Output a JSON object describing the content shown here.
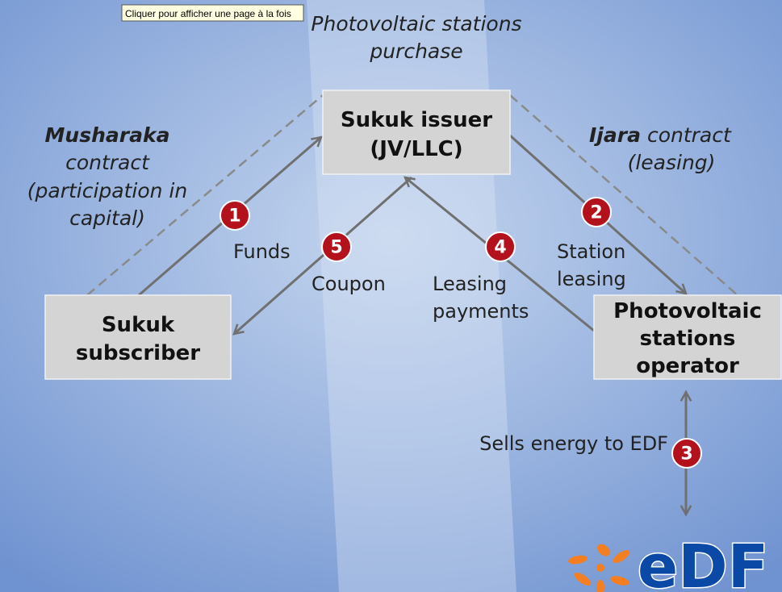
{
  "tooltip": "Cliquer pour afficher une page à la fois",
  "purchase_label": [
    "Photovoltaic stations",
    "purchase"
  ],
  "musharaka": {
    "term": "Musharaka",
    "lines": [
      "contract",
      "(participation in",
      "capital)"
    ]
  },
  "ijara": {
    "term": "Ijara",
    "rest": "contract",
    "lines": [
      "(leasing)"
    ]
  },
  "nodes": [
    {
      "label": [
        "Sukuk issuer",
        "(JV/LLC)"
      ]
    },
    {
      "label": [
        "Sukuk",
        "subscriber"
      ]
    },
    {
      "label": [
        "Photovoltaic",
        "stations",
        "operator"
      ]
    }
  ],
  "steps": [
    {
      "number": "1",
      "label": [
        "Funds"
      ]
    },
    {
      "number": "2",
      "label": [
        "Station",
        "leasing"
      ]
    },
    {
      "number": "3",
      "label": [
        "Sells energy to EDF"
      ]
    },
    {
      "number": "4",
      "label": [
        "Leasing",
        "payments"
      ]
    },
    {
      "number": "5",
      "label": [
        "Coupon"
      ]
    }
  ],
  "logo": "eDF"
}
